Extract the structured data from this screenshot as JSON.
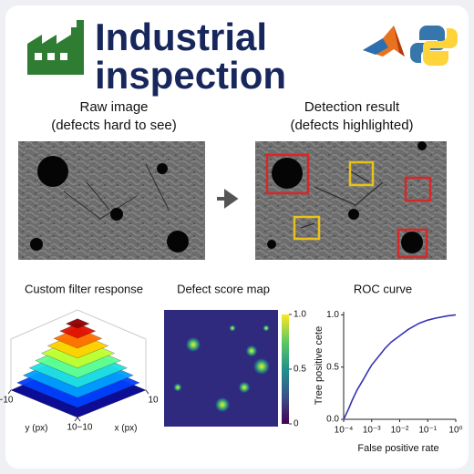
{
  "header": {
    "title_lines": [
      "Industrial",
      "inspection"
    ]
  },
  "panels": [
    {
      "title_lines": [
        "Raw image",
        "(defects hard to see)"
      ]
    },
    {
      "title_lines": [
        "Detection result",
        "(defects highlighted)"
      ]
    }
  ],
  "filter": {
    "title": "Custom filter response",
    "xlabel": "x (px)",
    "ylabel": "y (px)",
    "xlim": [
      -10,
      10
    ],
    "ylim": [
      -10,
      10
    ],
    "xticks": [
      {
        "value": -10,
        "label": "−10"
      },
      10
    ],
    "yticks": [
      {
        "value": -10,
        "label": "−10"
      },
      10
    ]
  },
  "score_map": {
    "title": "Defect score map",
    "clim": [
      0,
      1
    ],
    "colorbar_ticks": [
      {
        "value": 1,
        "label": "1.0"
      },
      0.5,
      0
    ]
  },
  "roc": {
    "type": "line",
    "title": "ROC curve",
    "xlabel": "False positive rate",
    "ylabel": "Tree positive cete",
    "xscale": "log",
    "color": "#3535b5",
    "x": [
      0.0001,
      0.00015,
      0.0002,
      0.0003,
      0.0005,
      0.0007,
      0.001,
      0.002,
      0.003,
      0.005,
      0.01,
      0.02,
      0.05,
      0.1,
      0.2,
      0.5,
      1
    ],
    "values": [
      0,
      0.1,
      0.18,
      0.28,
      0.38,
      0.45,
      0.52,
      0.62,
      0.68,
      0.74,
      0.8,
      0.86,
      0.92,
      0.95,
      0.97,
      0.99,
      1.0
    ],
    "xlim": [
      0.0001,
      1
    ],
    "ylim": [
      0,
      1.03
    ],
    "xticks": [
      {
        "value": 0.0001,
        "label": "10⁻⁴"
      },
      {
        "value": 0.001,
        "label": "10⁻³"
      },
      {
        "value": 0.01,
        "label": "10⁻²"
      },
      {
        "value": 0.1,
        "label": "10⁻¹"
      },
      {
        "value": 1,
        "label": "10⁰"
      }
    ],
    "yticks": [
      {
        "value": 1,
        "label": "1.0"
      },
      0.5,
      {
        "value": 0,
        "label": "0.0"
      }
    ]
  }
}
